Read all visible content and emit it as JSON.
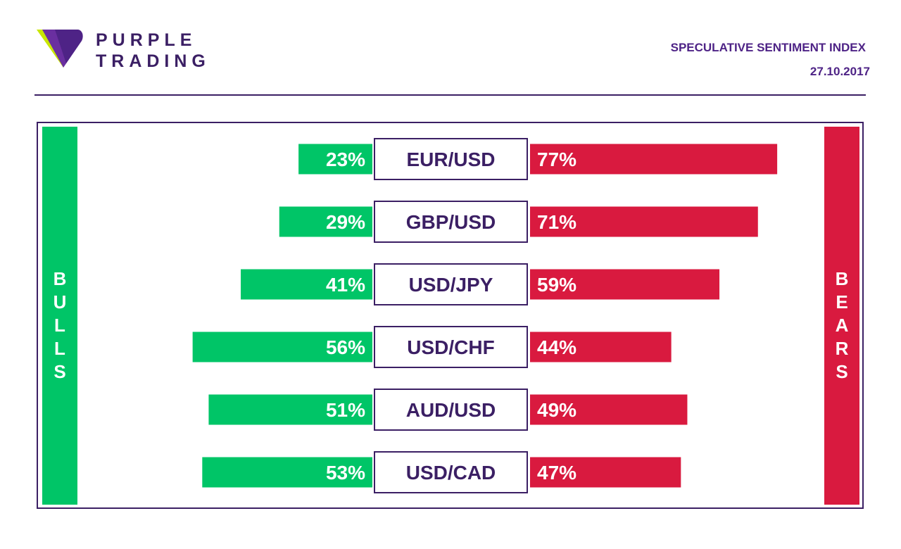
{
  "brand": {
    "line1": "PURPLE",
    "line2": "TRADING",
    "icon": "purple-trading-logo",
    "colors": {
      "purple": "#4e2386",
      "lime": "#c8e600"
    }
  },
  "header": {
    "title": "SPECULATIVE SENTIMENT INDEX",
    "date": "27.10.2017"
  },
  "sides": {
    "bulls": "BULLS",
    "bears": "BEARS"
  },
  "colors": {
    "bull": "#00c567",
    "bear": "#d91a3f",
    "text": "#3b1f64"
  },
  "chart_data": {
    "type": "bar",
    "title": "SPECULATIVE SENTIMENT INDEX",
    "categories": [
      "EUR/USD",
      "GBP/USD",
      "USD/JPY",
      "USD/CHF",
      "AUD/USD",
      "USD/CAD"
    ],
    "series": [
      {
        "name": "BULLS",
        "color": "#00c567",
        "values": [
          23,
          29,
          41,
          56,
          51,
          53
        ],
        "labels": [
          "23%",
          "29%",
          "41%",
          "56%",
          "51%",
          "53%"
        ]
      },
      {
        "name": "BEARS",
        "color": "#d91a3f",
        "values": [
          77,
          71,
          59,
          44,
          49,
          47
        ],
        "labels": [
          "77%",
          "71%",
          "59%",
          "44%",
          "49%",
          "47%"
        ]
      }
    ],
    "orientation": "horizontal-diverging",
    "unit": "%",
    "xlim": [
      0,
      100
    ]
  }
}
